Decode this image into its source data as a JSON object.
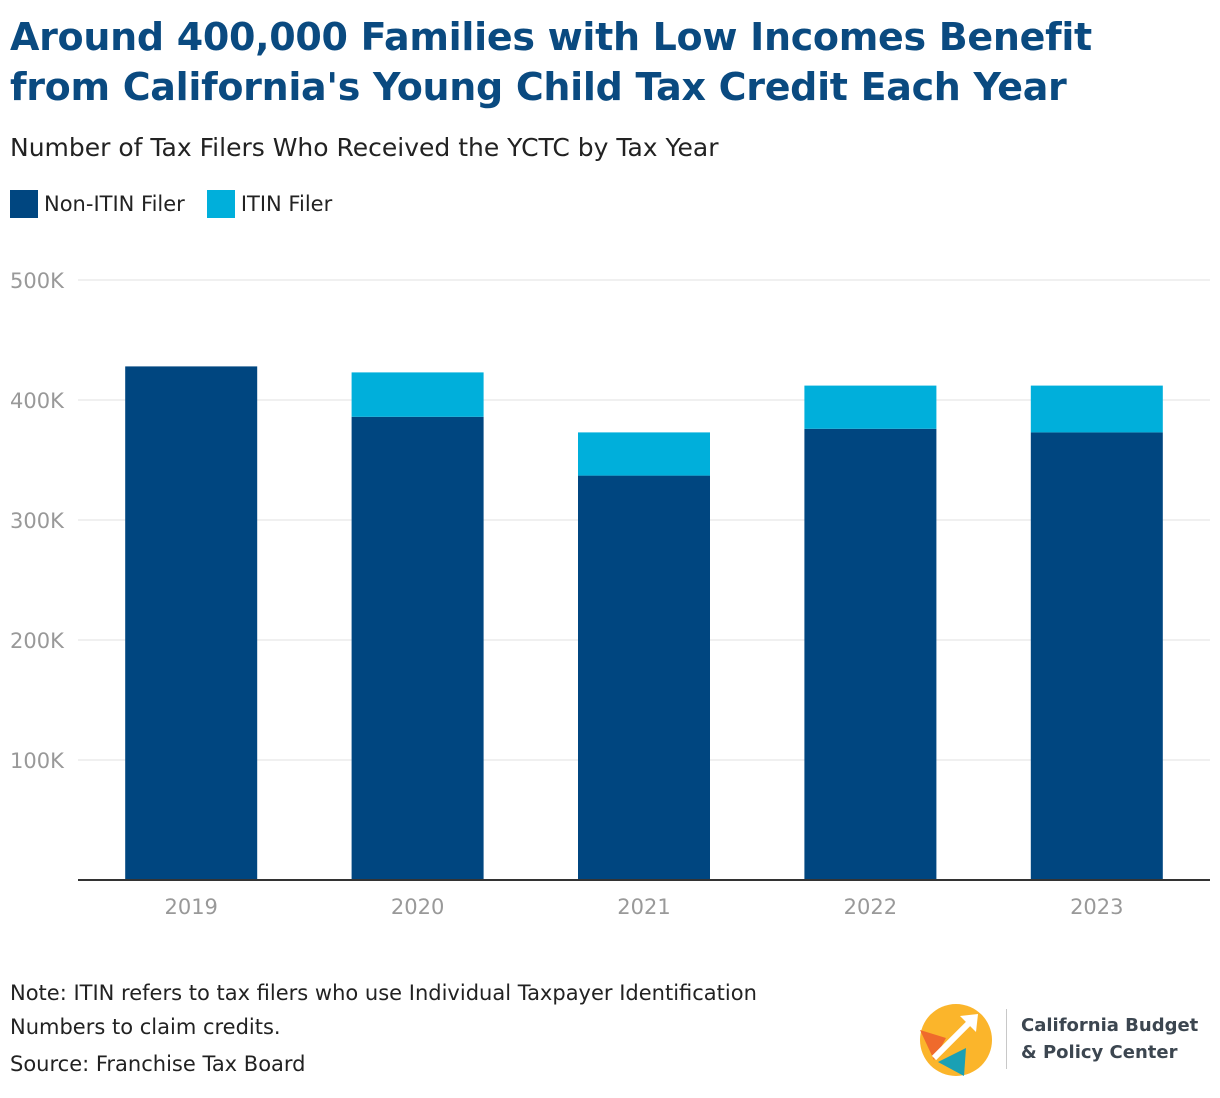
{
  "title_line1": "Around 400,000 Families with Low Incomes Benefit",
  "title_line2": "from California's Young Child Tax Credit Each Year",
  "colors": {
    "non_itin": "#004680",
    "itin": "#00afdb",
    "title": "#0a4a80",
    "grid": "#e1e1e1",
    "axis_text": "#999999"
  },
  "legend": {
    "non_itin": "Non-ITIN Filer",
    "itin": "ITIN Filer"
  },
  "note": "Note: ITIN refers to tax filers who use Individual Taxpayer Identification Numbers to claim credits.",
  "source": "Source: Franchise Tax Board",
  "logo": {
    "line1": "California Budget",
    "line2": "& Policy Center"
  },
  "chart_data": {
    "type": "bar",
    "stacked": true,
    "title": "Around 400,000 Families with Low Incomes Benefit from California's Young Child Tax Credit Each Year",
    "subtitle": "Number of Tax Filers Who Received the YCTC by Tax Year",
    "categories": [
      "2019",
      "2020",
      "2021",
      "2022",
      "2023"
    ],
    "series": [
      {
        "name": "Non-ITIN Filer",
        "values": [
          428000,
          386000,
          337000,
          376000,
          373000
        ]
      },
      {
        "name": "ITIN Filer",
        "values": [
          0,
          37000,
          36000,
          36000,
          39000
        ]
      }
    ],
    "ylim": [
      0,
      500000
    ],
    "yticks": [
      100000,
      200000,
      300000,
      400000,
      500000
    ],
    "ytick_labels": [
      "100K",
      "200K",
      "300K",
      "400K",
      "500K"
    ],
    "xlabel": "",
    "ylabel": "",
    "grid": true,
    "legend_position": "top-left"
  }
}
